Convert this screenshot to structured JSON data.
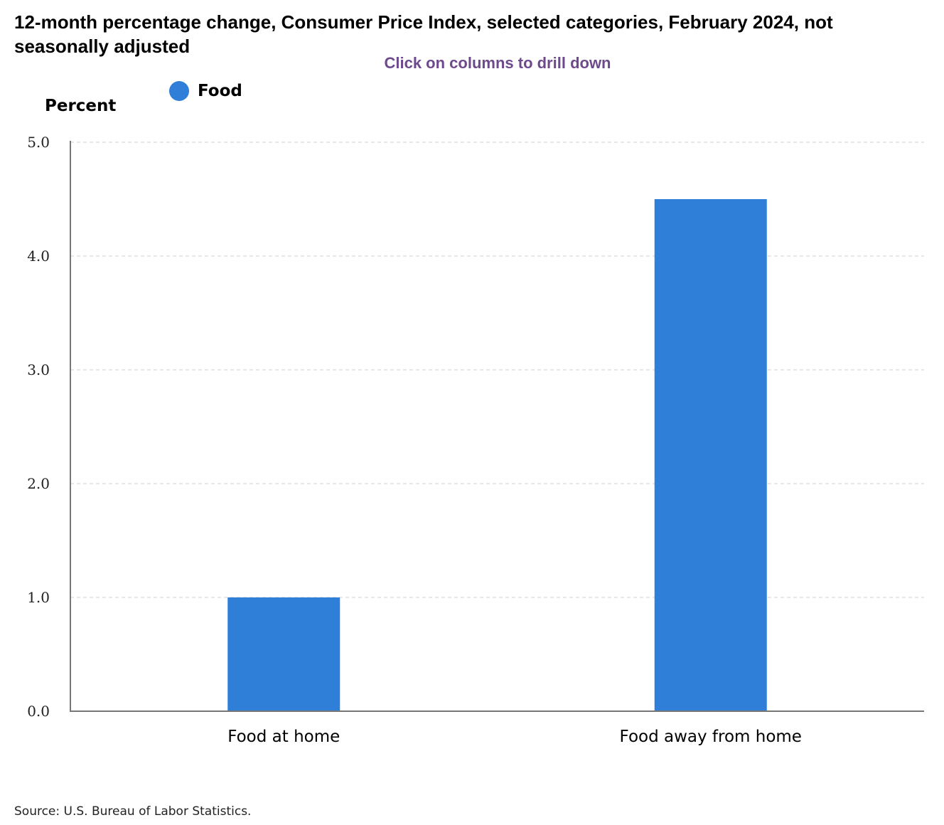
{
  "title": "12-month percentage change, Consumer Price Index, selected categories, February 2024, not seasonally adjusted",
  "drilldown_hint": "Click on columns to drill down",
  "legend": {
    "label": "Food",
    "color": "#2f7ed8"
  },
  "ylabel": "Percent",
  "source": "Source: U.S. Bureau of Labor Statistics.",
  "chart_data": {
    "type": "bar",
    "title": "12-month percentage change, Consumer Price Index, selected categories, February 2024, not seasonally adjusted",
    "xlabel": "",
    "ylabel": "Percent",
    "categories": [
      "Food at home",
      "Food away from home"
    ],
    "series": [
      {
        "name": "Food",
        "values": [
          1.0,
          4.5
        ],
        "color": "#2f7ed8"
      }
    ],
    "ylim": [
      0,
      5
    ],
    "yticks": [
      "0.0",
      "1.0",
      "2.0",
      "3.0",
      "4.0",
      "5.0"
    ],
    "grid": true,
    "legend_position": "top-left"
  }
}
